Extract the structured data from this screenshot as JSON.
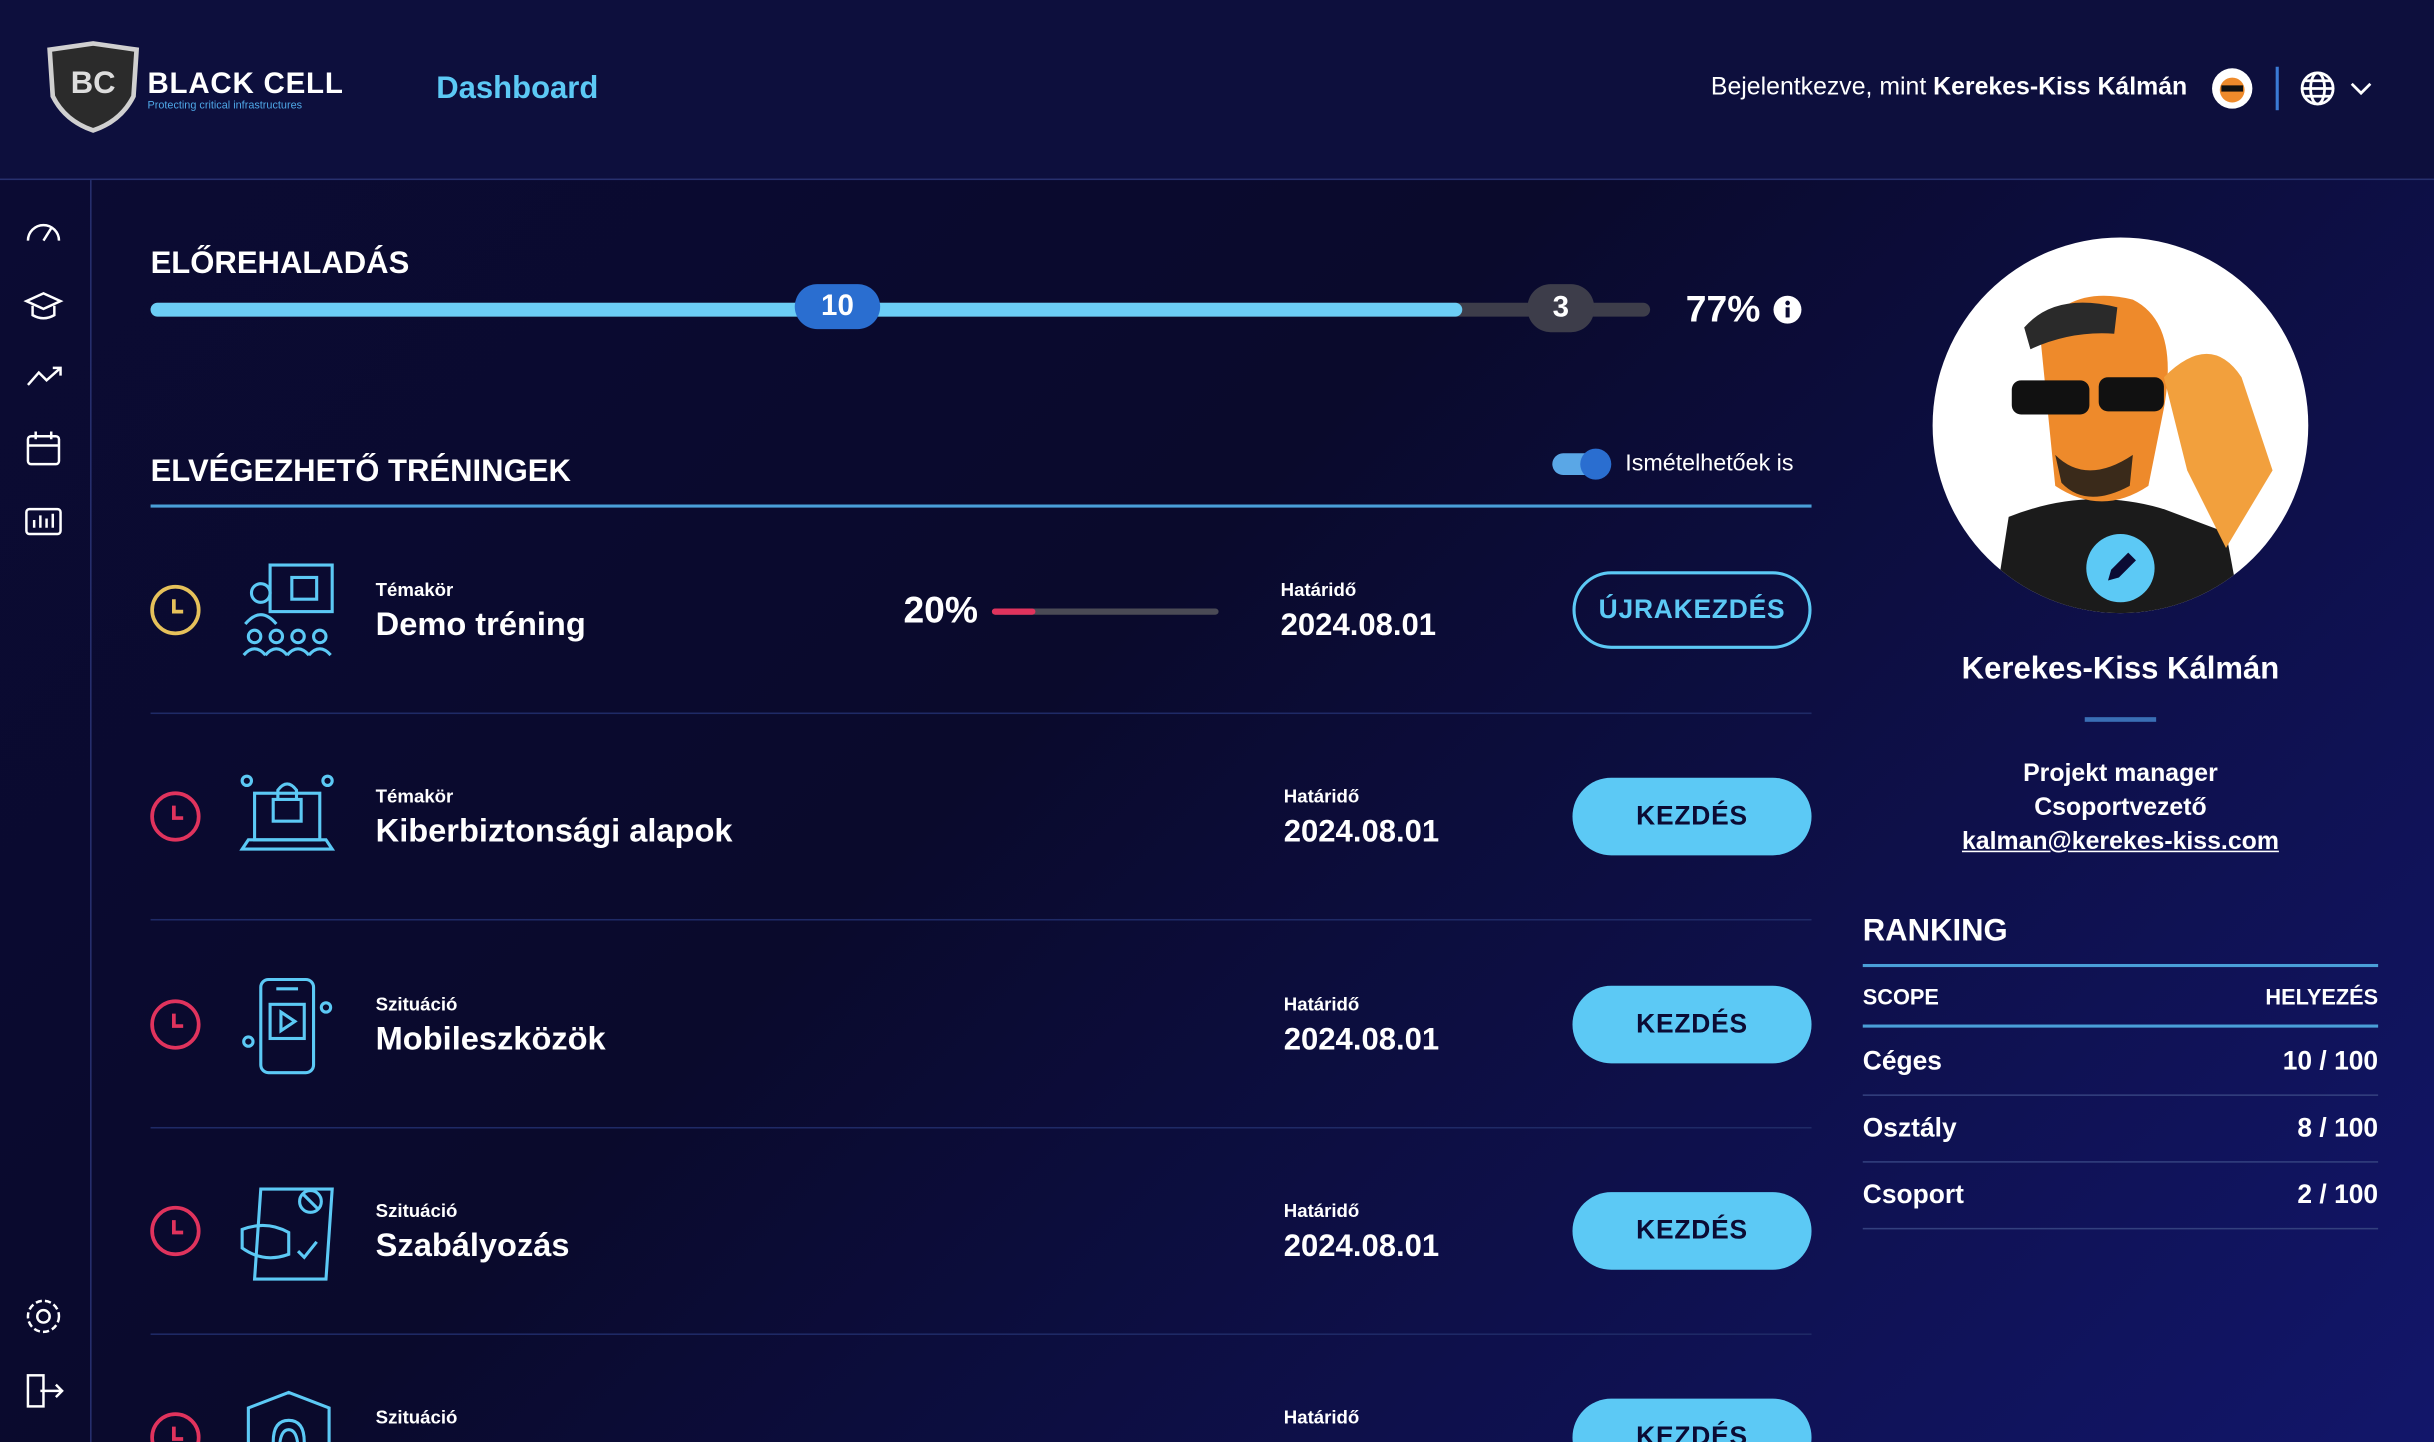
{
  "header": {
    "logo_title": "BLACK CELL",
    "logo_tagline": "Protecting critical infrastructures",
    "nav_title": "Dashboard",
    "logged_in_prefix": "Bejelentkezve, mint",
    "user_name": "Kerekes-Kiss Kálmán"
  },
  "progress": {
    "title": "ELŐREHALADÁS",
    "completed": "10",
    "remaining": "3",
    "percent": "77%"
  },
  "trainings": {
    "title": "ELVÉGEZHETŐ TRÉNINGEK",
    "toggle_label": "Ismételhetőek is",
    "items": [
      {
        "category": "Témakör",
        "title": "Demo tréning",
        "progress": "20%",
        "deadline_label": "Határidő",
        "deadline": "2024.08.01",
        "button": "ÚJRAKEZDÉS"
      },
      {
        "category": "Témakör",
        "title": "Kiberbiztonsági alapok",
        "deadline_label": "Határidő",
        "deadline": "2024.08.01",
        "button": "KEZDÉS"
      },
      {
        "category": "Szituáció",
        "title": "Mobileszközök",
        "deadline_label": "Határidő",
        "deadline": "2024.08.01",
        "button": "KEZDÉS"
      },
      {
        "category": "Szituáció",
        "title": "Szabályozás",
        "deadline_label": "Határidő",
        "deadline": "2024.08.01",
        "button": "KEZDÉS"
      },
      {
        "category": "Szituáció",
        "deadline_label": "Határidő",
        "button": "KEZDÉS"
      }
    ]
  },
  "profile": {
    "name": "Kerekes-Kiss Kálmán",
    "role": "Projekt manager",
    "position": "Csoportvezető",
    "email": "kalman@kerekes-kiss.com"
  },
  "ranking": {
    "title": "RANKING",
    "columns": [
      "SCOPE",
      "HELYEZÉS"
    ],
    "rows": [
      [
        "Céges",
        "10 / 100"
      ],
      [
        "Osztály",
        "8 / 100"
      ],
      [
        "Csoport",
        "2 / 100"
      ]
    ]
  }
}
